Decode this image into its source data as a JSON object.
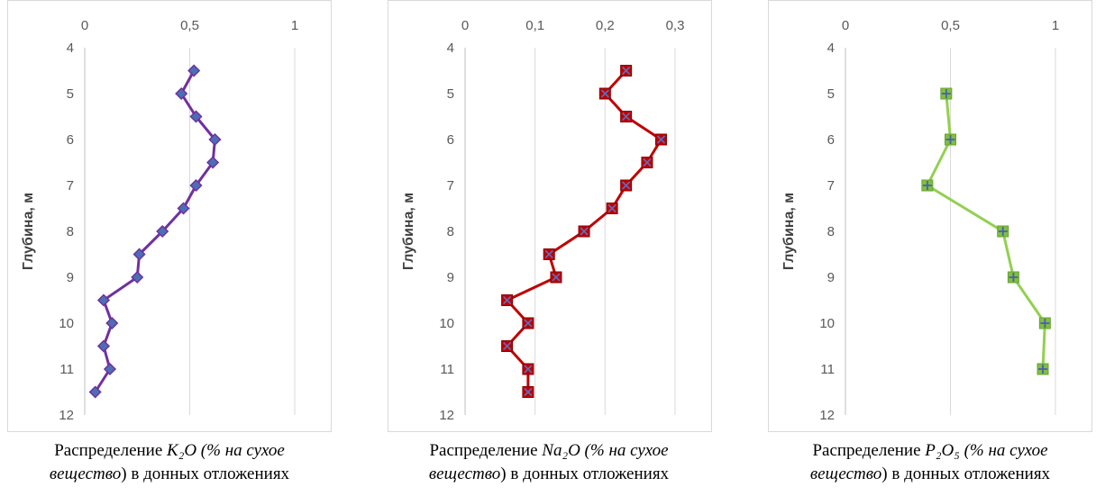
{
  "chart_data": [
    {
      "type": "line",
      "ylabel": "Глубина, м",
      "xlim": [
        0,
        1
      ],
      "xticks": [
        "0",
        "0,5",
        "1"
      ],
      "xtick_values": [
        0,
        0.5,
        1
      ],
      "ylim": [
        4,
        12
      ],
      "yticks": [
        "4",
        "5",
        "6",
        "7",
        "8",
        "9",
        "10",
        "11",
        "12"
      ],
      "y_reversed": true,
      "grid": true,
      "color": "#7030a0",
      "marker": "diamond",
      "marker_color": "#4a6fb5",
      "series": [
        {
          "x": [
            0.52,
            0.46,
            0.53,
            0.62,
            0.61,
            0.53,
            0.47,
            0.37,
            0.26,
            0.25,
            0.09,
            0.13,
            0.09,
            0.12,
            0.05
          ],
          "y": [
            4.5,
            5,
            5.5,
            6,
            6.5,
            7,
            7.5,
            8,
            8.5,
            9,
            9.5,
            10,
            10.5,
            11,
            11.5
          ]
        }
      ],
      "caption": {
        "line1_pre": "Распределение ",
        "formula": "K₂O",
        "line1_post": " (% на сухое",
        "line2_italic": "вещество",
        "line2_rest": ") в донных отложениях"
      }
    },
    {
      "type": "line",
      "ylabel": "Глубина, м",
      "xlim": [
        0,
        0.3
      ],
      "xticks": [
        "0",
        "0,1",
        "0,2",
        "0,3"
      ],
      "xtick_values": [
        0,
        0.1,
        0.2,
        0.3
      ],
      "ylim": [
        4,
        12
      ],
      "yticks": [
        "4",
        "5",
        "6",
        "7",
        "8",
        "9",
        "10",
        "11",
        "12"
      ],
      "y_reversed": true,
      "grid": true,
      "color": "#c00000",
      "marker": "square-x",
      "marker_color": "#c00000",
      "series": [
        {
          "x": [
            0.23,
            0.2,
            0.23,
            0.28,
            0.26,
            0.23,
            0.21,
            0.17,
            0.12,
            0.13,
            0.06,
            0.09,
            0.06,
            0.09,
            0.09
          ],
          "y": [
            4.5,
            5,
            5.5,
            6,
            6.5,
            7,
            7.5,
            8,
            8.5,
            9,
            9.5,
            10,
            10.5,
            11,
            11.5
          ]
        }
      ],
      "caption": {
        "line1_pre": "Распределение ",
        "formula": "Na₂O",
        "line1_post": " (% на сухое",
        "line2_italic": "вещество",
        "line2_rest": ") в донных отложениях"
      }
    },
    {
      "type": "line",
      "ylabel": "Глубина, м",
      "xlim": [
        0,
        1
      ],
      "xticks": [
        "0",
        "0,5",
        "1"
      ],
      "xtick_values": [
        0,
        0.5,
        1
      ],
      "ylim": [
        4,
        12
      ],
      "yticks": [
        "4",
        "5",
        "6",
        "7",
        "8",
        "9",
        "10",
        "11",
        "12"
      ],
      "y_reversed": true,
      "grid": true,
      "color": "#92d050",
      "marker": "square-plus",
      "marker_color": "#7fbf3f",
      "series": [
        {
          "x": [
            0.48,
            0.5,
            0.39,
            0.75,
            0.8,
            0.95,
            0.94
          ],
          "y": [
            5,
            6,
            7,
            8,
            9,
            10,
            11
          ]
        }
      ],
      "caption": {
        "line1_pre": "Распределение ",
        "formula": "P₂O₅",
        "line1_post": " (% на сухое",
        "line2_italic": "вещество",
        "line2_rest": ") в донных отложениях"
      }
    }
  ]
}
